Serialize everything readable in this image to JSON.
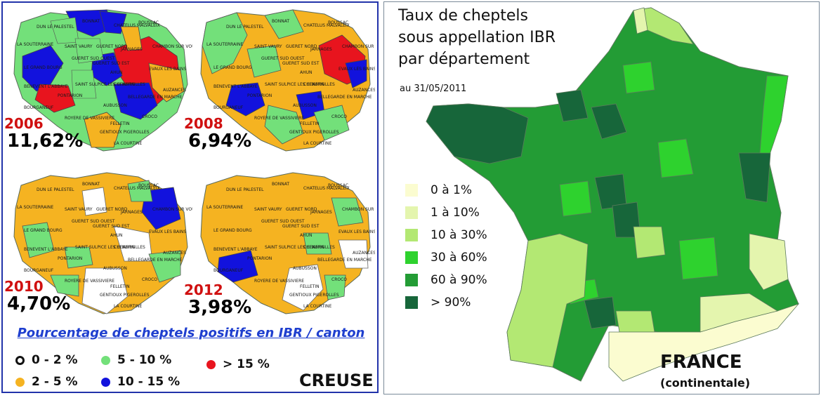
{
  "left": {
    "maps": [
      {
        "year": "2006",
        "percent": "11,62%"
      },
      {
        "year": "2008",
        "percent": "6,94%"
      },
      {
        "year": "2010",
        "percent": "4,70%"
      },
      {
        "year": "2012",
        "percent": "3,98%"
      }
    ],
    "canton_labels": [
      "DUN LE PALESTEL",
      "BONNAT",
      "CHATELUS MALVALEIX",
      "BOUSSAC",
      "LA SOUTERRAINE",
      "SAINT VAURY",
      "GUERET NORD",
      "JARNAGES",
      "CHAMBON SUR VOUEIZE",
      "LE GRAND BOURG",
      "GUERET SUD OUEST",
      "GUERET SUD EST",
      "AHUN",
      "EVAUX LES BAINS",
      "BENEVENT L'ABBAYE",
      "SAINT SULPICE LES CHAMPS",
      "CHENERAILLES",
      "PONTARION",
      "AUZANCES",
      "BOURGANEUF",
      "BELLEGARDE EN MARCHE",
      "AUBUSSON",
      "ROYERE DE VASSIVIERE",
      "FELLETIN",
      "CROCO",
      "GENTIOUX PIGEROLLES",
      "LA COURTINE"
    ],
    "legend_title": "Pourcentage de cheptels positifs en IBR / canton",
    "legend": [
      {
        "label": "0 - 2 %",
        "color": "#ffffff"
      },
      {
        "label": "2 - 5 %",
        "color": "#f5b321"
      },
      {
        "label": "5 - 10 %",
        "color": "#73e07a"
      },
      {
        "label": "10 - 15 %",
        "color": "#1212dd"
      },
      {
        "label": "> 15 %",
        "color": "#e8141e"
      }
    ],
    "region_label": "CREUSE"
  },
  "right": {
    "title_lines": [
      "Taux de cheptels",
      "sous appellation IBR",
      "par département"
    ],
    "date": "au 31/05/2011",
    "legend": [
      {
        "label": "0 à 1%",
        "color": "#fbfcd0"
      },
      {
        "label": "1 à 10%",
        "color": "#e4f5ae"
      },
      {
        "label": "10 à 30%",
        "color": "#b3e873"
      },
      {
        "label": "30 à 60%",
        "color": "#2ed22e"
      },
      {
        "label": "60 à 90%",
        "color": "#239c35"
      },
      {
        "label": "> 90%",
        "color": "#17663a"
      }
    ],
    "country_label": "FRANCE",
    "country_sub": "(continentale)"
  }
}
